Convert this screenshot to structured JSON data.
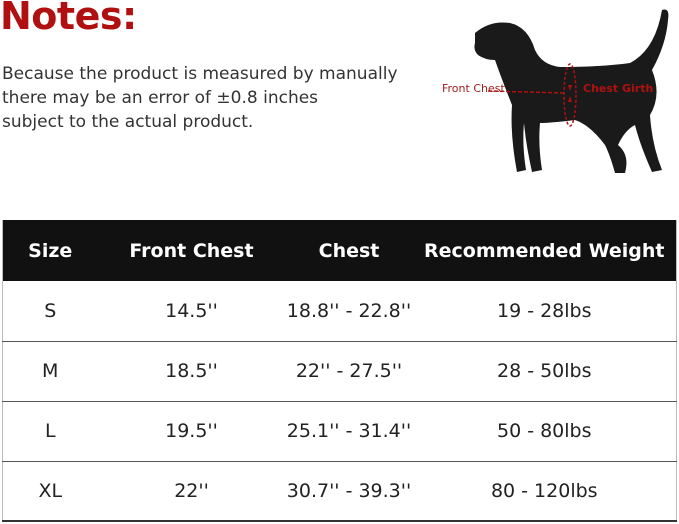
{
  "notes": {
    "title": "Notes:",
    "lines": [
      "Because the product is measured by manually",
      "there may be an error of ±0.8 inches",
      "subject to the actual product."
    ]
  },
  "diagram": {
    "front_chest_label": "Front Chest",
    "chest_girth_label": "Chest Girth",
    "accent": "#b01010"
  },
  "table": {
    "headers": [
      "Size",
      "Front Chest",
      "Chest",
      "Recommended Weight"
    ],
    "rows": [
      [
        "S",
        "14.5''",
        "18.8'' - 22.8''",
        "19 - 28lbs"
      ],
      [
        "M",
        "18.5''",
        "22'' - 27.5''",
        "28 - 50lbs"
      ],
      [
        "L",
        "19.5''",
        "25.1'' - 31.4''",
        "50 - 80lbs"
      ],
      [
        "XL",
        "22''",
        "30.7'' - 39.3''",
        "80 - 120lbs"
      ]
    ]
  }
}
